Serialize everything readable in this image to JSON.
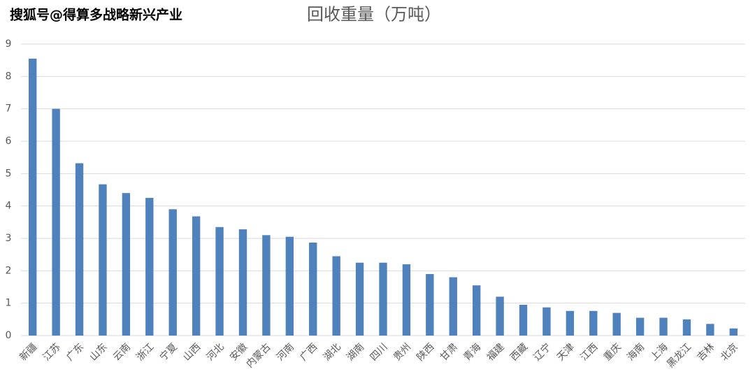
{
  "watermark": "搜狐号@得算多战略新兴产业",
  "chart_data": {
    "type": "bar",
    "title": "回收重量（万吨）",
    "categories": [
      "新疆",
      "江苏",
      "广东",
      "山东",
      "云南",
      "浙江",
      "宁夏",
      "山西",
      "河北",
      "安徽",
      "内蒙古",
      "河南",
      "广西",
      "湖北",
      "湖南",
      "四川",
      "贵州",
      "陕西",
      "甘肃",
      "青海",
      "福建",
      "西藏",
      "辽宁",
      "天津",
      "江西",
      "重庆",
      "海南",
      "上海",
      "黑龙江",
      "吉林",
      "北京"
    ],
    "values": [
      8.55,
      7.0,
      5.32,
      4.67,
      4.4,
      4.25,
      3.9,
      3.68,
      3.35,
      3.28,
      3.1,
      3.05,
      2.87,
      2.45,
      2.25,
      2.25,
      2.2,
      1.9,
      1.8,
      1.55,
      1.2,
      0.95,
      0.87,
      0.76,
      0.76,
      0.7,
      0.55,
      0.55,
      0.5,
      0.36,
      0.22
    ],
    "color": "#4f81bd",
    "ylim": [
      0,
      9
    ],
    "yticks": [
      0,
      1,
      2,
      3,
      4,
      5,
      6,
      7,
      8,
      9
    ],
    "grid": true
  }
}
